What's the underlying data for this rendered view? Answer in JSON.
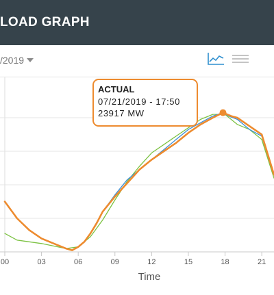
{
  "header": {
    "title": "LOAD GRAPH"
  },
  "toolbar": {
    "date_value": "/2019",
    "chart_view_icon": "line-chart-icon",
    "menu_icon": "hamburger-menu-icon"
  },
  "colors": {
    "header_bg": "#36434b",
    "actual": "#ed8b2f",
    "forecast_blue": "#3d8fd6",
    "forecast_green": "#7cc243",
    "grid": "#e6e6e6",
    "icon_blue": "#2f8fcf"
  },
  "tooltip": {
    "title": "ACTUAL",
    "datetime": "07/21/2019 - 17:50",
    "value": "23917 MW"
  },
  "chart_data": {
    "type": "line",
    "xlabel": "Time",
    "x_ticks": [
      "00",
      "03",
      "06",
      "09",
      "12",
      "15",
      "18",
      "21"
    ],
    "xlim": [
      0,
      22
    ],
    "ylim": [
      0,
      5
    ],
    "grid": true,
    "series": [
      {
        "color": "#7cc243",
        "x": [
          0,
          1,
          3,
          5,
          6,
          7,
          8,
          9,
          10,
          11,
          12,
          13,
          14,
          15,
          16,
          17,
          18,
          19,
          20,
          21,
          22
        ],
        "y": [
          0.55,
          0.35,
          0.25,
          0.1,
          0.15,
          0.45,
          0.95,
          1.55,
          2.1,
          2.55,
          2.95,
          3.2,
          3.45,
          3.7,
          3.95,
          4.1,
          4.1,
          3.8,
          3.65,
          3.35,
          2.2
        ]
      },
      {
        "color": "#3d8fd6",
        "x": [
          0,
          1,
          2,
          3,
          4,
          5,
          5.5,
          6,
          6.5,
          7,
          8,
          9,
          10,
          11,
          12,
          13,
          14,
          15,
          16,
          17,
          17.8,
          18.3,
          19,
          20,
          21,
          22
        ],
        "y": [
          1.5,
          1.0,
          0.65,
          0.4,
          0.25,
          0.1,
          0.05,
          0.15,
          0.3,
          0.55,
          1.2,
          1.7,
          2.15,
          2.45,
          2.75,
          3.05,
          3.35,
          3.65,
          3.85,
          4.05,
          4.15,
          4.05,
          3.95,
          3.65,
          3.45,
          2.3
        ]
      },
      {
        "name": "ACTUAL",
        "color": "#ed8b2f",
        "x": [
          0,
          1,
          2,
          3,
          4,
          5,
          5.5,
          6,
          6.5,
          7,
          7.5,
          8,
          9,
          10,
          11,
          12,
          13,
          14,
          15,
          16,
          17,
          17.83,
          18.5,
          19,
          20,
          21,
          22
        ],
        "y": [
          1.5,
          1.0,
          0.65,
          0.4,
          0.25,
          0.1,
          0.05,
          0.15,
          0.3,
          0.55,
          0.85,
          1.2,
          1.65,
          2.05,
          2.45,
          2.75,
          3.0,
          3.25,
          3.55,
          3.8,
          4.0,
          4.15,
          4.05,
          4.0,
          3.75,
          3.5,
          2.3
        ]
      }
    ],
    "highlight": {
      "series": "ACTUAL",
      "x": 17.83,
      "y": 4.15
    }
  }
}
